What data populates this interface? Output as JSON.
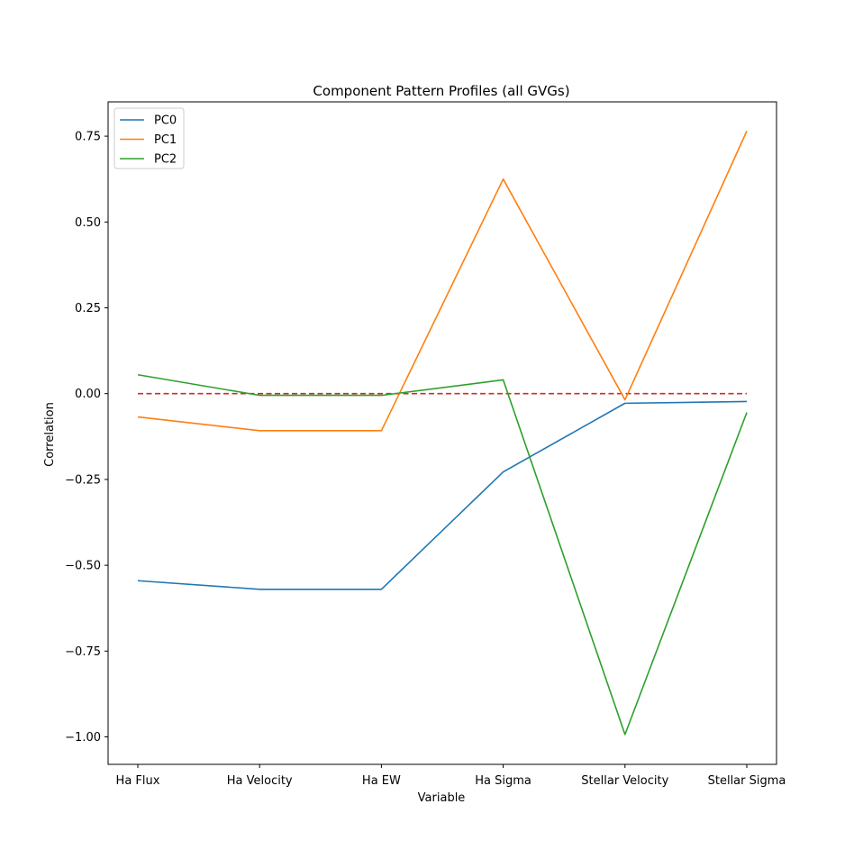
{
  "chart_data": {
    "type": "line",
    "title": "Component Pattern Profiles (all GVGs)",
    "xlabel": "Variable",
    "ylabel": "Correlation",
    "categories": [
      "Ha Flux",
      "Ha Velocity",
      "Ha EW",
      "Ha Sigma",
      "Stellar Velocity",
      "Stellar Sigma"
    ],
    "ylim": [
      -1.08,
      0.85
    ],
    "yticks": [
      -1.0,
      -0.75,
      -0.5,
      -0.25,
      0.0,
      0.25,
      0.5,
      0.75
    ],
    "ytick_labels": [
      "−1.00",
      "−0.75",
      "−0.50",
      "−0.25",
      "0.00",
      "0.25",
      "0.50",
      "0.75"
    ],
    "legend_position": "upper-left",
    "grid": false,
    "series": [
      {
        "name": "PC0",
        "color": "#1f77b4",
        "values": [
          -0.545,
          -0.57,
          -0.57,
          -0.228,
          -0.028,
          -0.023
        ]
      },
      {
        "name": "PC1",
        "color": "#ff7f0e",
        "values": [
          -0.068,
          -0.108,
          -0.108,
          0.625,
          -0.018,
          0.765
        ]
      },
      {
        "name": "PC2",
        "color": "#2ca02c",
        "values": [
          0.055,
          -0.005,
          -0.005,
          0.04,
          -0.993,
          -0.055
        ]
      }
    ],
    "reference_line": {
      "value": 0.0,
      "color": "#d62728",
      "style": "dashed"
    }
  }
}
